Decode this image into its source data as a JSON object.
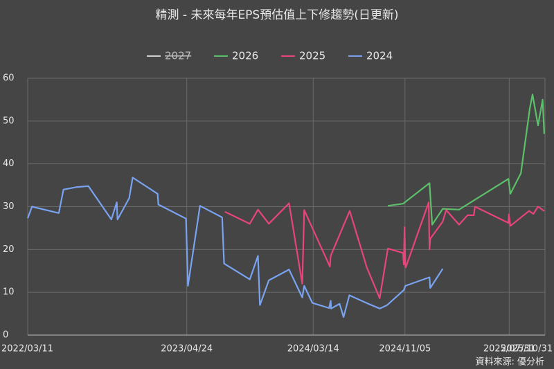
{
  "chart_data": {
    "type": "line",
    "title": "精測 - 未來每年EPS預估值上下修趨勢(日更新)",
    "source": "資料來源: 優分析",
    "legend_position": "top",
    "grid": true,
    "ylim": [
      0,
      60
    ],
    "yticks": [
      0,
      10,
      20,
      30,
      40,
      50,
      60
    ],
    "xlim": [
      "2022/03/11",
      "2025/10/31"
    ],
    "xticks": [
      "2022/03/11",
      "2023/04/24",
      "2024/03/14",
      "2024/11/05",
      "2025/07/31",
      "2025/10/31"
    ],
    "series": [
      {
        "name": "2027",
        "color": "#d0d0d0",
        "hidden": true,
        "x": [],
        "values": []
      },
      {
        "name": "2026",
        "color": "#5cbf6a",
        "x": [
          "2024/09/22",
          "2024/10/31",
          "2025/01/07",
          "2025/01/14",
          "2025/02/10",
          "2025/03/24",
          "2025/07/29",
          "2025/08/03",
          "2025/08/30",
          "2025/09/22",
          "2025/09/29",
          "2025/10/13",
          "2025/10/25",
          "2025/10/29"
        ],
        "values": [
          30.2,
          30.7,
          35.5,
          25.8,
          29.5,
          29.3,
          36.5,
          33,
          37.8,
          53,
          56.2,
          49,
          55,
          47
        ]
      },
      {
        "name": "2025",
        "color": "#e8457a",
        "x": [
          "2023/07/31",
          "2023/10/03",
          "2023/10/24",
          "2023/11/21",
          "2024/01/12",
          "2024/02/15",
          "2024/02/20",
          "2024/04/26",
          "2024/04/28",
          "2024/06/16",
          "2024/07/26",
          "2024/07/29",
          "2024/09/01",
          "2024/09/22",
          "2024/10/31",
          "2024/11/02",
          "2024/11/04",
          "2024/11/06",
          "2024/11/07",
          "2025/01/05",
          "2025/01/07",
          "2025/01/09",
          "2025/02/10",
          "2025/02/19",
          "2025/03/24",
          "2025/04/15",
          "2025/05/01",
          "2025/05/04",
          "2025/07/29",
          "2025/07/30",
          "2025/08/03",
          "2025/09/20",
          "2025/10/01",
          "2025/10/13",
          "2025/10/29"
        ],
        "values": [
          28.8,
          26,
          29.3,
          26,
          30.8,
          12,
          29.2,
          16,
          18.5,
          29,
          17,
          16,
          8.6,
          20.2,
          19.2,
          16.5,
          25.2,
          16,
          15.8,
          31,
          20,
          22.5,
          26.5,
          29.2,
          25.8,
          28,
          28,
          30,
          26.2,
          28.2,
          25.5,
          29,
          28.3,
          30,
          29
        ]
      },
      {
        "name": "2024",
        "color": "#79a3f0",
        "x": [
          "2022/03/11",
          "2022/03/22",
          "2022/05/30",
          "2022/06/11",
          "2022/07/17",
          "2022/08/14",
          "2022/10/12",
          "2022/10/26",
          "2022/10/28",
          "2022/11/27",
          "2022/12/06",
          "2023/02/08",
          "2023/02/10",
          "2023/04/22",
          "2023/04/27",
          "2023/05/28",
          "2023/07/24",
          "2023/07/29",
          "2023/10/03",
          "2023/10/24",
          "2023/10/29",
          "2023/11/21",
          "2024/01/12",
          "2024/02/15",
          "2024/02/20",
          "2024/03/12",
          "2024/04/24",
          "2024/04/28",
          "2024/04/29",
          "2024/05/21",
          "2024/05/31",
          "2024/06/15",
          "2024/07/29",
          "2024/09/01",
          "2024/09/20",
          "2024/11/02",
          "2024/11/06",
          "2025/01/07",
          "2025/01/09",
          "2025/02/10"
        ],
        "values": [
          27.3,
          30,
          28.5,
          34,
          34.6,
          34.8,
          27,
          31,
          27,
          32,
          36.8,
          33,
          30.5,
          27.2,
          11.5,
          30.2,
          27.5,
          16.7,
          13,
          18.5,
          7,
          12.8,
          15.3,
          8.8,
          11.5,
          7.5,
          6.3,
          8,
          6.2,
          7.3,
          4.2,
          9.3,
          7.5,
          6.2,
          7,
          10.5,
          11.5,
          13.5,
          11,
          15.5
        ]
      }
    ]
  }
}
